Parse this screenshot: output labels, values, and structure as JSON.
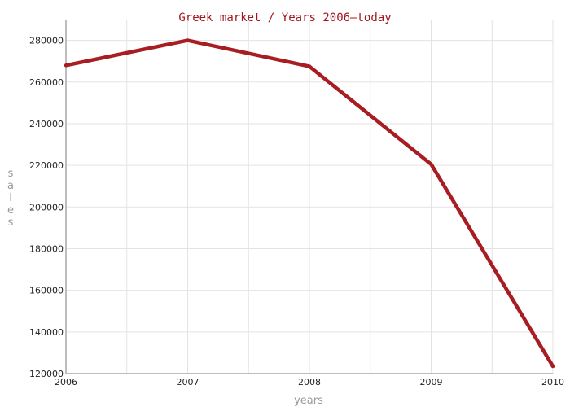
{
  "chart_data": {
    "type": "line",
    "title": "Greek market / Years 2006–today",
    "xlabel": "years",
    "ylabel": "sales",
    "x": [
      2006,
      2007,
      2008,
      2009,
      2010
    ],
    "x_tick_labels": [
      "2006",
      "2007",
      "2008",
      "2009",
      "2010"
    ],
    "xlim": [
      2006,
      2010
    ],
    "ylim": [
      120000,
      290000
    ],
    "y_ticks": [
      120000,
      140000,
      160000,
      180000,
      200000,
      220000,
      240000,
      260000,
      280000
    ],
    "y_tick_labels": [
      "120000",
      "140000",
      "160000",
      "180000",
      "200000",
      "220000",
      "240000",
      "260000",
      "280000"
    ],
    "series": [
      {
        "values": [
          268000,
          280000,
          267500,
          220500,
          123500
        ],
        "color": "#a71d22"
      }
    ],
    "grid": true,
    "legend": "none"
  }
}
